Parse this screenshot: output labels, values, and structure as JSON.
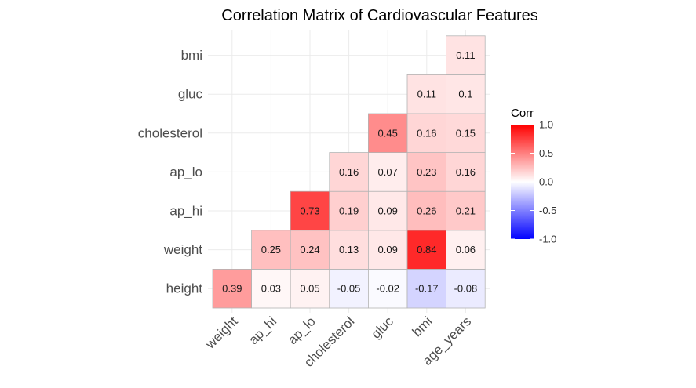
{
  "chart_data": {
    "type": "heatmap",
    "title": "Correlation Matrix of Cardiovascular Features",
    "xlabel": "",
    "ylabel": "",
    "x_categories": [
      "weight",
      "ap_hi",
      "ap_lo",
      "cholesterol",
      "gluc",
      "bmi",
      "age_years"
    ],
    "y_categories": [
      "height",
      "weight",
      "ap_hi",
      "ap_lo",
      "cholesterol",
      "gluc",
      "bmi"
    ],
    "cells": [
      {
        "x": "weight",
        "y": "height",
        "value": 0.39,
        "label": "0.39"
      },
      {
        "x": "ap_hi",
        "y": "height",
        "value": 0.03,
        "label": "0.03"
      },
      {
        "x": "ap_lo",
        "y": "height",
        "value": 0.05,
        "label": "0.05"
      },
      {
        "x": "cholesterol",
        "y": "height",
        "value": -0.05,
        "label": "-0.05"
      },
      {
        "x": "gluc",
        "y": "height",
        "value": -0.02,
        "label": "-0.02"
      },
      {
        "x": "bmi",
        "y": "height",
        "value": -0.17,
        "label": "-0.17"
      },
      {
        "x": "age_years",
        "y": "height",
        "value": -0.08,
        "label": "-0.08"
      },
      {
        "x": "ap_hi",
        "y": "weight",
        "value": 0.25,
        "label": "0.25"
      },
      {
        "x": "ap_lo",
        "y": "weight",
        "value": 0.24,
        "label": "0.24"
      },
      {
        "x": "cholesterol",
        "y": "weight",
        "value": 0.13,
        "label": "0.13"
      },
      {
        "x": "gluc",
        "y": "weight",
        "value": 0.09,
        "label": "0.09"
      },
      {
        "x": "bmi",
        "y": "weight",
        "value": 0.84,
        "label": "0.84"
      },
      {
        "x": "age_years",
        "y": "weight",
        "value": 0.06,
        "label": "0.06"
      },
      {
        "x": "ap_lo",
        "y": "ap_hi",
        "value": 0.73,
        "label": "0.73"
      },
      {
        "x": "cholesterol",
        "y": "ap_hi",
        "value": 0.19,
        "label": "0.19"
      },
      {
        "x": "gluc",
        "y": "ap_hi",
        "value": 0.09,
        "label": "0.09"
      },
      {
        "x": "bmi",
        "y": "ap_hi",
        "value": 0.26,
        "label": "0.26"
      },
      {
        "x": "age_years",
        "y": "ap_hi",
        "value": 0.21,
        "label": "0.21"
      },
      {
        "x": "cholesterol",
        "y": "ap_lo",
        "value": 0.16,
        "label": "0.16"
      },
      {
        "x": "gluc",
        "y": "ap_lo",
        "value": 0.07,
        "label": "0.07"
      },
      {
        "x": "bmi",
        "y": "ap_lo",
        "value": 0.23,
        "label": "0.23"
      },
      {
        "x": "age_years",
        "y": "ap_lo",
        "value": 0.16,
        "label": "0.16"
      },
      {
        "x": "gluc",
        "y": "cholesterol",
        "value": 0.45,
        "label": "0.45"
      },
      {
        "x": "bmi",
        "y": "cholesterol",
        "value": 0.16,
        "label": "0.16"
      },
      {
        "x": "age_years",
        "y": "cholesterol",
        "value": 0.15,
        "label": "0.15"
      },
      {
        "x": "bmi",
        "y": "gluc",
        "value": 0.11,
        "label": "0.11"
      },
      {
        "x": "age_years",
        "y": "gluc",
        "value": 0.1,
        "label": "0.1"
      },
      {
        "x": "age_years",
        "y": "bmi",
        "value": 0.11,
        "label": "0.11"
      }
    ],
    "value_range": [
      -1,
      1
    ],
    "grid": true,
    "legend": {
      "title": "Corr",
      "placement": "right",
      "ticks": [
        "1.0",
        "0.5",
        "0.0",
        "-0.5",
        "-1.0"
      ],
      "tick_values": [
        1.0,
        0.5,
        0.0,
        -0.5,
        -1.0
      ]
    },
    "colors": {
      "high": "#ff0000",
      "mid": "#ffffff",
      "low": "#0000ff"
    }
  }
}
